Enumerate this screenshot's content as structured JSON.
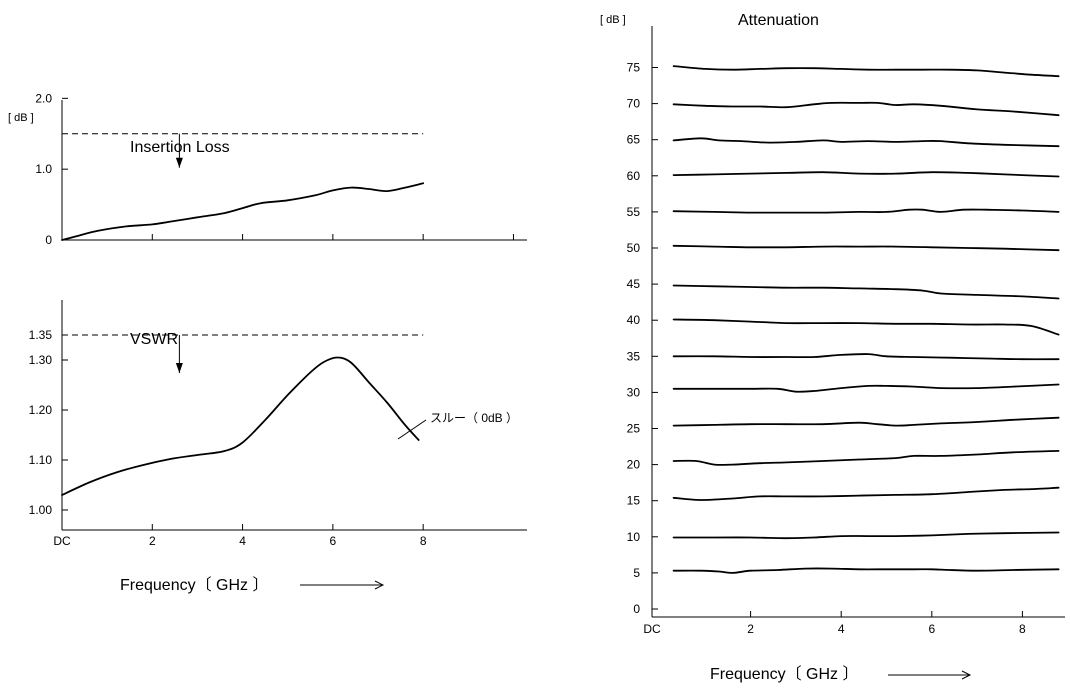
{
  "chart_data": [
    {
      "id": "insertion-loss",
      "type": "line",
      "title": "Insertion Loss",
      "unit_label": "[ dB ]",
      "ylim": [
        0,
        2.4
      ],
      "xlim": [
        0,
        10.3
      ],
      "yticks": [
        {
          "v": 0,
          "label": "0"
        },
        {
          "v": 1,
          "label": "1.0"
        },
        {
          "v": 2,
          "label": "2.0"
        }
      ],
      "xticks": [
        2,
        4,
        6,
        8,
        10
      ],
      "spec_limit": 1.5,
      "series": [
        {
          "x": [
            0,
            0.3,
            0.8,
            1.4,
            2.0,
            2.4,
            3.0,
            3.6,
            4.0,
            4.4,
            5.0,
            5.6,
            6.0,
            6.4,
            6.8,
            7.2,
            7.6,
            8.0
          ],
          "y": [
            0.0,
            0.05,
            0.13,
            0.19,
            0.22,
            0.26,
            0.32,
            0.38,
            0.45,
            0.52,
            0.56,
            0.63,
            0.7,
            0.74,
            0.72,
            0.69,
            0.74,
            0.8
          ]
        }
      ]
    },
    {
      "id": "vswr",
      "type": "line",
      "title": "VSWR",
      "ylim": [
        1.0,
        1.42
      ],
      "xlim": [
        0,
        10.3
      ],
      "yticks": [
        {
          "v": 1.0,
          "label": "1.00"
        },
        {
          "v": 1.1,
          "label": "1.10"
        },
        {
          "v": 1.2,
          "label": "1.20"
        },
        {
          "v": 1.3,
          "label": "1.30"
        },
        {
          "v": 1.35,
          "label": "1.35"
        }
      ],
      "xticks": [
        {
          "v": 0,
          "label": "DC"
        },
        {
          "v": 2,
          "label": "2"
        },
        {
          "v": 4,
          "label": "4"
        },
        {
          "v": 6,
          "label": "6"
        },
        {
          "v": 8,
          "label": "8"
        }
      ],
      "spec_limit": 1.35,
      "xlabel": "Frequency〔 GHz 〕",
      "annotation": "スルー（ 0dB ）",
      "series": [
        {
          "name": "スルー（ 0dB ）",
          "x": [
            0,
            0.6,
            1.2,
            1.8,
            2.4,
            3.0,
            3.6,
            4.0,
            4.5,
            5.0,
            5.5,
            5.8,
            6.1,
            6.4,
            6.8,
            7.2,
            7.6,
            7.9
          ],
          "y": [
            1.03,
            1.055,
            1.075,
            1.09,
            1.102,
            1.11,
            1.118,
            1.135,
            1.18,
            1.23,
            1.275,
            1.296,
            1.305,
            1.295,
            1.255,
            1.215,
            1.17,
            1.14
          ]
        }
      ]
    },
    {
      "id": "attenuation",
      "type": "line",
      "title": "Attenuation",
      "unit_label": "[ dB ]",
      "ylim": [
        0,
        80
      ],
      "xlim": [
        0,
        9.0
      ],
      "yticks": [
        0,
        5,
        10,
        15,
        20,
        25,
        30,
        35,
        40,
        45,
        50,
        55,
        60,
        65,
        70,
        75
      ],
      "xticks": [
        {
          "v": 0,
          "label": "DC"
        },
        {
          "v": 2,
          "label": "2"
        },
        {
          "v": 4,
          "label": "4"
        },
        {
          "v": 6,
          "label": "6"
        },
        {
          "v": 8,
          "label": "8"
        }
      ],
      "xlabel": "Frequency〔 GHz 〕",
      "series": [
        {
          "x": [
            0.3,
            1.0,
            1.6,
            2.2,
            2.8,
            3.4,
            4.0,
            4.6,
            5.2,
            5.8,
            6.4,
            7.0,
            7.6,
            8.2,
            8.8
          ],
          "y": [
            75.2,
            74.8,
            74.7,
            74.8,
            74.9,
            74.9,
            74.8,
            74.7,
            74.7,
            74.7,
            74.7,
            74.6,
            74.3,
            74.0,
            73.8
          ]
        },
        {
          "x": [
            0.3,
            1.0,
            1.6,
            2.2,
            2.8,
            3.4,
            3.8,
            4.4,
            4.8,
            5.2,
            5.6,
            6.2,
            7.0,
            7.8,
            8.8
          ],
          "y": [
            69.9,
            69.7,
            69.6,
            69.6,
            69.5,
            69.9,
            70.1,
            70.1,
            70.1,
            69.8,
            69.9,
            69.7,
            69.2,
            68.9,
            68.4
          ]
        },
        {
          "x": [
            0.3,
            0.9,
            1.3,
            1.8,
            2.4,
            3.0,
            3.6,
            4.0,
            4.6,
            5.2,
            5.8,
            6.2,
            6.8,
            7.6,
            8.8
          ],
          "y": [
            64.9,
            65.2,
            64.9,
            64.8,
            64.6,
            64.7,
            64.9,
            64.7,
            64.8,
            64.7,
            64.8,
            64.8,
            64.5,
            64.3,
            64.1
          ]
        },
        {
          "x": [
            0.3,
            1.2,
            2.0,
            2.8,
            3.6,
            4.4,
            5.2,
            6.0,
            6.8,
            7.6,
            8.8
          ],
          "y": [
            60.1,
            60.2,
            60.3,
            60.4,
            60.5,
            60.3,
            60.3,
            60.5,
            60.4,
            60.2,
            59.9
          ]
        },
        {
          "x": [
            0.3,
            1.2,
            2.0,
            2.8,
            3.6,
            4.4,
            5.0,
            5.5,
            5.8,
            6.2,
            6.7,
            7.2,
            8.0,
            8.8
          ],
          "y": [
            55.1,
            55.0,
            54.9,
            54.9,
            54.9,
            55.0,
            55.0,
            55.3,
            55.3,
            55.0,
            55.3,
            55.3,
            55.2,
            55.0
          ]
        },
        {
          "x": [
            0.3,
            1.2,
            2.0,
            2.8,
            3.6,
            4.4,
            5.2,
            6.0,
            6.8,
            7.6,
            8.8
          ],
          "y": [
            50.3,
            50.2,
            50.1,
            50.1,
            50.2,
            50.2,
            50.2,
            50.1,
            50.0,
            49.9,
            49.7
          ]
        },
        {
          "x": [
            0.3,
            1.2,
            2.0,
            2.8,
            3.6,
            4.4,
            5.2,
            5.8,
            6.2,
            7.0,
            8.0,
            8.8
          ],
          "y": [
            44.8,
            44.7,
            44.6,
            44.5,
            44.5,
            44.4,
            44.3,
            44.1,
            43.7,
            43.5,
            43.3,
            43.0
          ]
        },
        {
          "x": [
            0.3,
            1.2,
            2.0,
            2.8,
            3.6,
            4.4,
            5.2,
            6.0,
            6.8,
            7.6,
            8.2,
            8.8
          ],
          "y": [
            40.1,
            40.0,
            39.8,
            39.6,
            39.6,
            39.6,
            39.5,
            39.5,
            39.4,
            39.4,
            39.2,
            38.0
          ]
        },
        {
          "x": [
            0.3,
            1.2,
            2.0,
            2.8,
            3.4,
            4.0,
            4.6,
            5.0,
            5.6,
            6.4,
            7.2,
            8.0,
            8.8
          ],
          "y": [
            35.0,
            35.0,
            34.9,
            34.9,
            34.9,
            35.2,
            35.3,
            35.0,
            34.9,
            34.8,
            34.7,
            34.6,
            34.6
          ]
        },
        {
          "x": [
            0.3,
            1.2,
            2.0,
            2.6,
            3.0,
            3.4,
            4.0,
            4.6,
            5.0,
            5.6,
            6.2,
            7.0,
            7.8,
            8.8
          ],
          "y": [
            30.5,
            30.5,
            30.5,
            30.5,
            30.1,
            30.2,
            30.6,
            30.9,
            30.9,
            30.8,
            30.6,
            30.6,
            30.8,
            31.1
          ]
        },
        {
          "x": [
            0.3,
            1.2,
            2.0,
            2.8,
            3.6,
            4.4,
            4.8,
            5.2,
            5.6,
            6.2,
            7.0,
            7.8,
            8.8
          ],
          "y": [
            25.4,
            25.5,
            25.6,
            25.6,
            25.6,
            25.8,
            25.6,
            25.4,
            25.5,
            25.7,
            25.9,
            26.2,
            26.5
          ]
        },
        {
          "x": [
            0.3,
            0.8,
            1.2,
            1.6,
            2.2,
            2.8,
            3.6,
            4.4,
            5.2,
            5.6,
            6.2,
            7.0,
            7.8,
            8.8
          ],
          "y": [
            20.5,
            20.5,
            20.0,
            20.0,
            20.2,
            20.3,
            20.5,
            20.7,
            20.9,
            21.2,
            21.2,
            21.4,
            21.7,
            21.9
          ]
        },
        {
          "x": [
            0.3,
            0.9,
            1.6,
            2.2,
            2.8,
            3.6,
            4.4,
            5.2,
            6.0,
            6.8,
            7.6,
            8.2,
            8.8
          ],
          "y": [
            15.4,
            15.1,
            15.3,
            15.6,
            15.6,
            15.6,
            15.7,
            15.8,
            15.9,
            16.2,
            16.5,
            16.6,
            16.8
          ]
        },
        {
          "x": [
            0.3,
            1.2,
            2.0,
            2.8,
            3.4,
            4.0,
            4.6,
            5.2,
            6.0,
            6.8,
            7.6,
            8.8
          ],
          "y": [
            9.9,
            9.9,
            9.9,
            9.8,
            9.9,
            10.1,
            10.1,
            10.1,
            10.2,
            10.4,
            10.5,
            10.6
          ]
        },
        {
          "x": [
            0.3,
            0.9,
            1.3,
            1.6,
            2.0,
            2.6,
            3.2,
            3.8,
            4.4,
            5.0,
            5.6,
            6.0,
            6.4,
            7.0,
            7.8,
            8.8
          ],
          "y": [
            5.3,
            5.3,
            5.2,
            5.0,
            5.3,
            5.4,
            5.6,
            5.6,
            5.5,
            5.5,
            5.5,
            5.5,
            5.4,
            5.3,
            5.4,
            5.5
          ]
        }
      ]
    }
  ]
}
